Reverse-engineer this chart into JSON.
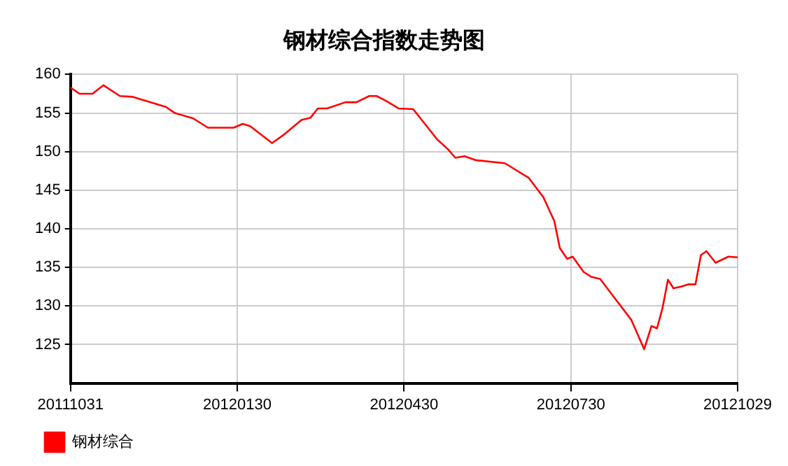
{
  "chart_data": {
    "type": "line",
    "title": "钢材综合指数走势图",
    "x": [
      "2011-10-31",
      "2011-11-05",
      "2011-11-12",
      "2011-11-18",
      "2011-11-27",
      "2011-12-04",
      "2011-12-22",
      "2011-12-27",
      "2012-01-06",
      "2012-01-14",
      "2012-01-28",
      "2012-02-02",
      "2012-02-06",
      "2012-02-18",
      "2012-02-25",
      "2012-03-05",
      "2012-03-10",
      "2012-03-14",
      "2012-03-19",
      "2012-03-29",
      "2012-04-04",
      "2012-04-11",
      "2012-04-15",
      "2012-04-20",
      "2012-04-27",
      "2012-05-05",
      "2012-05-18",
      "2012-05-24",
      "2012-05-28",
      "2012-06-02",
      "2012-06-08",
      "2012-06-24",
      "2012-07-07",
      "2012-07-15",
      "2012-07-21",
      "2012-07-24",
      "2012-07-28",
      "2012-07-31",
      "2012-08-06",
      "2012-08-10",
      "2012-08-15",
      "2012-08-23",
      "2012-09-01",
      "2012-09-08",
      "2012-09-12",
      "2012-09-15",
      "2012-09-18",
      "2012-09-21",
      "2012-09-24",
      "2012-09-28",
      "2012-10-02",
      "2012-10-06",
      "2012-10-09",
      "2012-10-12",
      "2012-10-17",
      "2012-10-24",
      "2012-10-29"
    ],
    "series": [
      {
        "name": "钢材综合",
        "color": "#ff0000",
        "values": [
          158.3,
          157.5,
          157.5,
          158.6,
          157.2,
          157.1,
          155.8,
          155.0,
          154.3,
          153.1,
          153.1,
          153.6,
          153.3,
          151.1,
          152.3,
          154.1,
          154.4,
          155.6,
          155.6,
          156.4,
          156.4,
          157.2,
          157.2,
          156.6,
          155.6,
          155.5,
          151.6,
          150.3,
          149.2,
          149.4,
          148.9,
          148.5,
          146.6,
          144.1,
          141.0,
          137.5,
          136.1,
          136.4,
          134.4,
          133.8,
          133.5,
          131.0,
          128.2,
          124.4,
          127.4,
          127.1,
          129.7,
          133.4,
          132.3,
          132.5,
          132.8,
          132.8,
          136.6,
          137.1,
          135.6,
          136.4,
          136.3
        ]
      }
    ],
    "xlim": [
      "2011-10-31",
      "2012-10-29"
    ],
    "xticks": [
      {
        "value": "2011-10-31",
        "label": "20111031"
      },
      {
        "value": "2012-01-30",
        "label": "20120130"
      },
      {
        "value": "2012-04-30",
        "label": "20120430"
      },
      {
        "value": "2012-07-30",
        "label": "20120730"
      },
      {
        "value": "2012-10-29",
        "label": "20121029"
      }
    ],
    "ylim": [
      120,
      160
    ],
    "yticks": [
      125,
      130,
      135,
      140,
      145,
      150,
      155,
      160
    ],
    "grid": true,
    "legend": "bottom left",
    "marker": "none",
    "line_style": "solid"
  }
}
